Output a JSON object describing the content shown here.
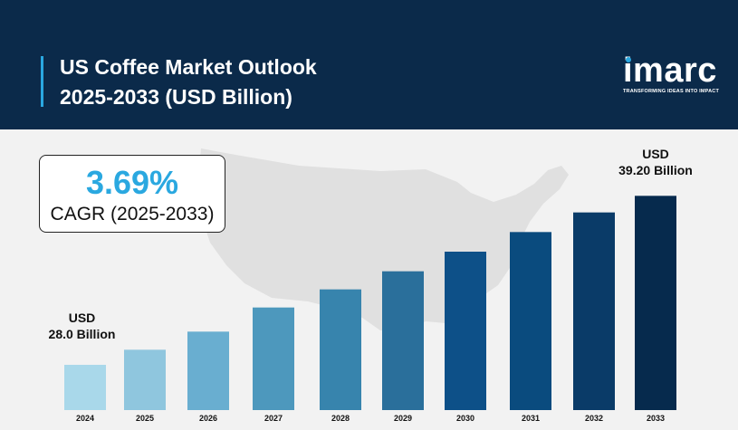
{
  "header": {
    "title_line1": "US Coffee Market Outlook",
    "title_line2": "2025-2033 (USD Billion)"
  },
  "logo": {
    "word": "imarc",
    "tagline": "TRANSFORMING IDEAS INTO IMPACT"
  },
  "cagr": {
    "value": "3.69%",
    "label": "CAGR (2025-2033)"
  },
  "callouts": {
    "start_currency": "USD",
    "start_value": "28.0 Billion",
    "end_currency": "USD",
    "end_value": "39.20 Billion"
  },
  "colors": {
    "header_bg": "#0b2a4a",
    "accent": "#2aa8e0",
    "bar_gradient": [
      "#a9d8ea",
      "#8fc6de",
      "#69aed0",
      "#4d98bd",
      "#3784ad",
      "#2a6f9b",
      "#0d5088",
      "#0a4b7e",
      "#0a3b68",
      "#062a4d"
    ]
  },
  "chart_data": {
    "type": "bar",
    "categories": [
      "2024",
      "2025",
      "2026",
      "2027",
      "2028",
      "2029",
      "2030",
      "2031",
      "2032",
      "2033"
    ],
    "values": [
      28.0,
      29.0,
      30.2,
      31.8,
      33.0,
      34.2,
      35.5,
      36.8,
      38.1,
      39.2
    ],
    "ylim": [
      25.0,
      39.7
    ],
    "grid": false,
    "legend": "none"
  }
}
